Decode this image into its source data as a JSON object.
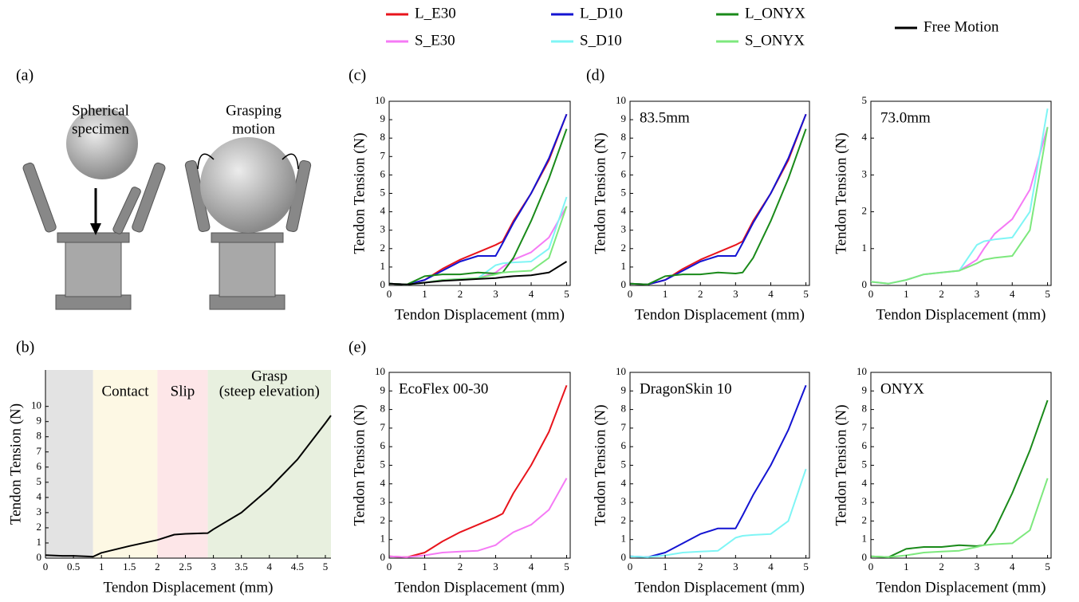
{
  "panel_labels": [
    "(a)",
    "(b)",
    "(c)",
    "(d)",
    "(e)"
  ],
  "illustration": {
    "label_left": [
      "Spherical",
      "specimen"
    ],
    "label_right": [
      "Grasping",
      "motion"
    ]
  },
  "chart_data": [
    {
      "type": "line",
      "xlabel": "Tendon Displacement (mm)",
      "ylabel": "Tendon Tension (N)",
      "x": [
        0,
        0.3,
        0.5,
        0.85,
        1,
        1.5,
        2,
        2.3,
        2.5,
        2.9,
        3,
        3.5,
        4,
        4.5,
        5,
        5.1
      ],
      "series": [
        {
          "color": "#000000",
          "values": [
            0.2,
            0.15,
            0.15,
            0.1,
            0.35,
            0.8,
            1.2,
            1.55,
            1.6,
            1.65,
            1.9,
            3.0,
            4.6,
            6.5,
            8.9,
            9.4
          ]
        }
      ],
      "spans": [
        {
          "from": 0,
          "to": 0.85,
          "color": "#e3e3e3"
        },
        {
          "from": 0.85,
          "to": 2,
          "color": "#fdf8e4",
          "label": [
            "Contact"
          ]
        },
        {
          "from": 2,
          "to": 2.9,
          "color": "#fde6e8",
          "label": [
            "Slip"
          ]
        },
        {
          "from": 2.9,
          "to": 5.1,
          "color": "#e8f0df",
          "label": [
            "Grasp",
            "(steep elevation)"
          ]
        }
      ],
      "xlim": [
        0,
        5.1
      ],
      "ylim": [
        0,
        12.4
      ],
      "xticks": [
        0,
        0.5,
        1,
        1.5,
        2,
        2.5,
        3,
        3.5,
        4,
        4.5,
        5
      ],
      "yticks": [
        0,
        1,
        2,
        3,
        4,
        5,
        6,
        7,
        8,
        9,
        10
      ]
    },
    {
      "type": "line",
      "xlabel": "Tendon Displacement (mm)",
      "ylabel": "Tendon Tension (N)",
      "x": [
        0,
        0.5,
        1,
        1.5,
        2,
        2.5,
        3,
        3.2,
        3.5,
        4,
        4.5,
        5
      ],
      "series": [
        {
          "name": "L_E30",
          "color": "#e8141c",
          "values": [
            0.1,
            0.05,
            0.3,
            0.9,
            1.4,
            1.8,
            2.2,
            2.4,
            3.5,
            5.0,
            6.8,
            9.3
          ]
        },
        {
          "name": "S_E30",
          "color": "#f57af5",
          "values": [
            0.1,
            0.05,
            0.15,
            0.3,
            0.35,
            0.4,
            0.7,
            1.0,
            1.4,
            1.8,
            2.6,
            4.3
          ]
        },
        {
          "name": "L_D10",
          "color": "#1414d2",
          "values": [
            0.1,
            0.05,
            0.3,
            0.8,
            1.3,
            1.6,
            1.6,
            2.3,
            3.4,
            5.0,
            6.9,
            9.3
          ]
        },
        {
          "name": "S_D10",
          "color": "#7ff5f5",
          "values": [
            0.1,
            0.05,
            0.15,
            0.3,
            0.35,
            0.4,
            1.1,
            1.2,
            1.25,
            1.3,
            2.0,
            4.8
          ]
        },
        {
          "name": "L_ONYX",
          "color": "#1a8a1a",
          "values": [
            0.1,
            0.05,
            0.5,
            0.6,
            0.6,
            0.7,
            0.65,
            0.7,
            1.5,
            3.5,
            5.8,
            8.5
          ]
        },
        {
          "name": "S_ONYX",
          "color": "#7de87d",
          "values": [
            0.1,
            0.05,
            0.15,
            0.3,
            0.35,
            0.4,
            0.6,
            0.7,
            0.75,
            0.8,
            1.5,
            4.3
          ]
        },
        {
          "name": "Free Motion",
          "color": "#000000",
          "values": [
            0.1,
            0.05,
            0.15,
            0.25,
            0.3,
            0.35,
            0.4,
            0.45,
            0.5,
            0.55,
            0.7,
            1.3
          ]
        }
      ],
      "xlim": [
        0,
        5.1
      ],
      "ylim": [
        0,
        10
      ],
      "xticks": [
        0,
        1,
        2,
        3,
        4,
        5
      ],
      "yticks": [
        0,
        1,
        2,
        3,
        4,
        5,
        6,
        7,
        8,
        9,
        10
      ]
    },
    {
      "type": "line",
      "xlabel": "Tendon Displacement (mm)",
      "ylabel": "Tendon Tension (N)",
      "annotation": "83.5mm",
      "x": [
        0,
        0.5,
        1,
        1.5,
        2,
        2.5,
        3,
        3.2,
        3.5,
        4,
        4.5,
        5
      ],
      "series": [
        {
          "color": "#e8141c",
          "values": [
            0.1,
            0.05,
            0.3,
            0.9,
            1.4,
            1.8,
            2.2,
            2.4,
            3.5,
            5.0,
            6.8,
            9.3
          ]
        },
        {
          "color": "#1414d2",
          "values": [
            0.1,
            0.05,
            0.3,
            0.8,
            1.3,
            1.6,
            1.6,
            2.3,
            3.4,
            5.0,
            6.9,
            9.3
          ]
        },
        {
          "color": "#1a8a1a",
          "values": [
            0.1,
            0.05,
            0.5,
            0.6,
            0.6,
            0.7,
            0.65,
            0.7,
            1.5,
            3.5,
            5.8,
            8.5
          ]
        }
      ],
      "xlim": [
        0,
        5.1
      ],
      "ylim": [
        0,
        10
      ],
      "xticks": [
        0,
        1,
        2,
        3,
        4,
        5
      ],
      "yticks": [
        0,
        1,
        2,
        3,
        4,
        5,
        6,
        7,
        8,
        9,
        10
      ]
    },
    {
      "type": "line",
      "xlabel": "Tendon Displacement (mm)",
      "ylabel": "Tendon Tension (N)",
      "annotation": "73.0mm",
      "x": [
        0,
        0.5,
        1,
        1.5,
        2,
        2.5,
        3,
        3.2,
        3.5,
        4,
        4.5,
        5
      ],
      "series": [
        {
          "color": "#f57af5",
          "values": [
            0.1,
            0.05,
            0.15,
            0.3,
            0.35,
            0.4,
            0.7,
            1.0,
            1.4,
            1.8,
            2.6,
            4.3
          ]
        },
        {
          "color": "#7ff5f5",
          "values": [
            0.1,
            0.05,
            0.15,
            0.3,
            0.35,
            0.4,
            1.1,
            1.2,
            1.25,
            1.3,
            2.0,
            4.8
          ]
        },
        {
          "color": "#7de87d",
          "values": [
            0.1,
            0.05,
            0.15,
            0.3,
            0.35,
            0.4,
            0.6,
            0.7,
            0.75,
            0.8,
            1.5,
            4.3
          ]
        }
      ],
      "xlim": [
        0,
        5.1
      ],
      "ylim": [
        0,
        5
      ],
      "xticks": [
        0,
        1,
        2,
        3,
        4,
        5
      ],
      "yticks": [
        0,
        1,
        2,
        3,
        4,
        5
      ]
    },
    {
      "type": "line",
      "xlabel": "Tendon Displacement (mm)",
      "ylabel": "Tendon Tension (N)",
      "annotation": "EcoFlex 00-30",
      "x": [
        0,
        0.5,
        1,
        1.5,
        2,
        2.5,
        3,
        3.2,
        3.5,
        4,
        4.5,
        5
      ],
      "series": [
        {
          "color": "#e8141c",
          "values": [
            0.1,
            0.05,
            0.3,
            0.9,
            1.4,
            1.8,
            2.2,
            2.4,
            3.5,
            5.0,
            6.8,
            9.3
          ]
        },
        {
          "color": "#f57af5",
          "values": [
            0.1,
            0.05,
            0.15,
            0.3,
            0.35,
            0.4,
            0.7,
            1.0,
            1.4,
            1.8,
            2.6,
            4.3
          ]
        }
      ],
      "xlim": [
        0,
        5.1
      ],
      "ylim": [
        0,
        10
      ],
      "xticks": [
        0,
        1,
        2,
        3,
        4,
        5
      ],
      "yticks": [
        0,
        1,
        2,
        3,
        4,
        5,
        6,
        7,
        8,
        9,
        10
      ]
    },
    {
      "type": "line",
      "xlabel": "Tendon Displacement (mm)",
      "ylabel": "Tendon Tension (N)",
      "annotation": "DragonSkin 10",
      "x": [
        0,
        0.5,
        1,
        1.5,
        2,
        2.5,
        3,
        3.2,
        3.5,
        4,
        4.5,
        5
      ],
      "series": [
        {
          "color": "#1414d2",
          "values": [
            0.1,
            0.05,
            0.3,
            0.8,
            1.3,
            1.6,
            1.6,
            2.3,
            3.4,
            5.0,
            6.9,
            9.3
          ]
        },
        {
          "color": "#7ff5f5",
          "values": [
            0.1,
            0.05,
            0.15,
            0.3,
            0.35,
            0.4,
            1.1,
            1.2,
            1.25,
            1.3,
            2.0,
            4.8
          ]
        }
      ],
      "xlim": [
        0,
        5.1
      ],
      "ylim": [
        0,
        10
      ],
      "xticks": [
        0,
        1,
        2,
        3,
        4,
        5
      ],
      "yticks": [
        0,
        1,
        2,
        3,
        4,
        5,
        6,
        7,
        8,
        9,
        10
      ]
    },
    {
      "type": "line",
      "xlabel": "Tendon Displacement (mm)",
      "ylabel": "Tendon Tension (N)",
      "annotation": "ONYX",
      "x": [
        0,
        0.5,
        1,
        1.5,
        2,
        2.5,
        3,
        3.2,
        3.5,
        4,
        4.5,
        5
      ],
      "series": [
        {
          "color": "#1a8a1a",
          "values": [
            0.1,
            0.05,
            0.5,
            0.6,
            0.6,
            0.7,
            0.65,
            0.7,
            1.5,
            3.5,
            5.8,
            8.5
          ]
        },
        {
          "color": "#7de87d",
          "values": [
            0.1,
            0.05,
            0.15,
            0.3,
            0.35,
            0.4,
            0.6,
            0.7,
            0.75,
            0.8,
            1.5,
            4.3
          ]
        }
      ],
      "xlim": [
        0,
        5.1
      ],
      "ylim": [
        0,
        10
      ],
      "xticks": [
        0,
        1,
        2,
        3,
        4,
        5
      ],
      "yticks": [
        0,
        1,
        2,
        3,
        4,
        5,
        6,
        7,
        8,
        9,
        10
      ]
    }
  ]
}
